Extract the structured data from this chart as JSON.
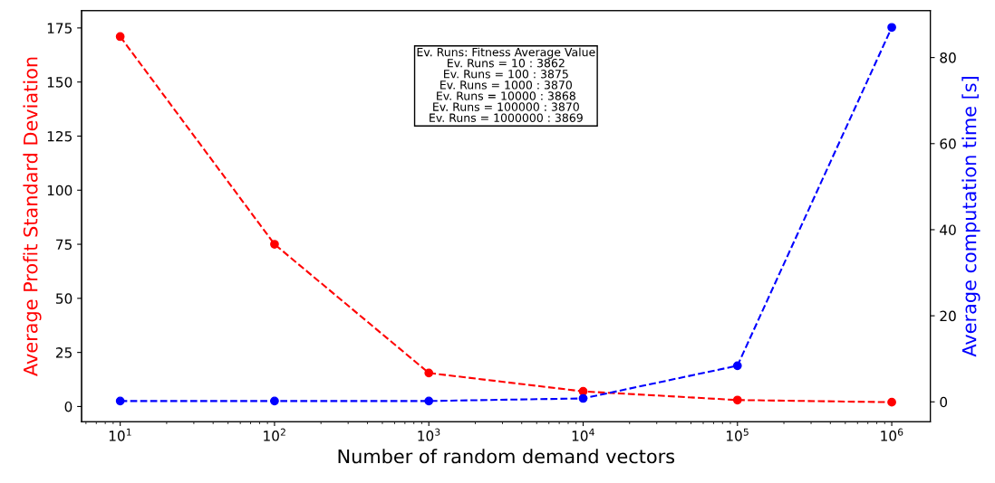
{
  "chart_data": {
    "type": "line",
    "xlabel": "Number of random demand vectors",
    "ylabel": "Average Profit Standard Deviation",
    "y2label": "Average computation time [s]",
    "x": [
      10,
      100,
      1000,
      10000,
      100000,
      1000000
    ],
    "series": [
      {
        "color": "#ff0000",
        "values": [
          171,
          75,
          15.5,
          7,
          3,
          2
        ]
      },
      {
        "color": "#0000ff",
        "axis": "y2",
        "values": [
          0.2,
          0.2,
          0.2,
          0.8,
          8.4,
          87
        ]
      }
    ],
    "log": "x",
    "xlim": [
      5.62,
      1778000
    ],
    "xticks": [
      {
        "value": 10,
        "label": "10$^{1}$"
      },
      {
        "value": 100,
        "label": "10$^{2}$"
      },
      {
        "value": 1000,
        "label": "10$^{3}$"
      },
      {
        "value": 10000,
        "label": "10$^{4}$"
      },
      {
        "value": 100000,
        "label": "10$^{5}$"
      },
      {
        "value": 1000000,
        "label": "10$^{6}$"
      }
    ],
    "ylim": [
      -7,
      183
    ],
    "yticks": [
      0,
      25,
      50,
      75,
      100,
      125,
      150,
      175
    ],
    "y2lim": [
      -4.6,
      90.9
    ],
    "y2ticks": [
      0,
      20,
      40,
      60,
      80
    ],
    "marker": "circle",
    "line_style": "dashed",
    "grid": false,
    "legend": false,
    "annotations": [
      "Ev. Runs: Fitness Average Value\nEv. Runs = 10 : 3862\nEv. Runs = 100 : 3875\nEv. Runs = 1000 : 3870\nEv. Runs = 10000 : 3868\nEv. Runs = 100000 : 3870\nEv. Runs = 1000000 : 3869"
    ]
  }
}
